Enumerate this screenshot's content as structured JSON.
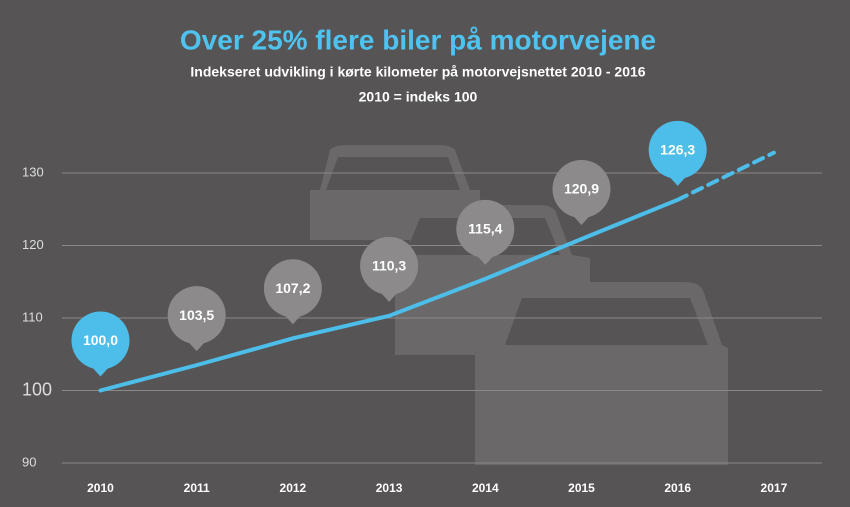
{
  "chart_data": {
    "type": "line",
    "title": "Over 25% flere biler på motorvejene",
    "subtitle": "Indekseret udvikling i kørte kilometer på motorvejsnettet 2010 - 2016",
    "note": "2010 = indeks 100",
    "x": [
      2010,
      2011,
      2012,
      2013,
      2014,
      2015,
      2016,
      2017
    ],
    "values": [
      100,
      103.5,
      107.2,
      110.3,
      115.4,
      120.9,
      126.3,
      132.8
    ],
    "value_labels": [
      "100,0",
      "103,5",
      "107,2",
      "110,3",
      "115,4",
      "120,9",
      "126,3",
      null
    ],
    "dashed_after": 2016,
    "color": "#4dbde9",
    "highlight_color": "#4dbde9",
    "pin_color": "#8c8a8b",
    "highlight": [
      2010,
      2016
    ],
    "xlim": [
      2009.6,
      2017.5
    ],
    "xticks": [
      2010,
      2011,
      2012,
      2013,
      2014,
      2015,
      2016,
      2017
    ],
    "ylim": [
      90,
      130
    ],
    "yticks": [
      90,
      100,
      110,
      120,
      130
    ],
    "grid": true
  }
}
